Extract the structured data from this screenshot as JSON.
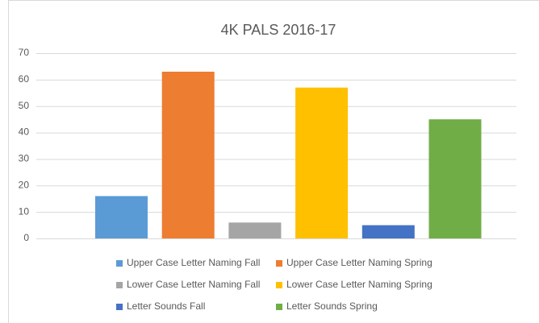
{
  "chart_data": {
    "type": "bar",
    "title": "4K PALS 2016-17",
    "categories": [
      null
    ],
    "series": [
      {
        "name": "Upper Case Letter Naming Fall",
        "color": "#5b9bd5",
        "values": [
          16
        ]
      },
      {
        "name": "Upper Case Letter Naming Spring",
        "color": "#ed7d31",
        "values": [
          63
        ]
      },
      {
        "name": "Lower Case Letter Naming Fall",
        "color": "#a5a5a5",
        "values": [
          6
        ]
      },
      {
        "name": "Lower Case Letter Naming Spring",
        "color": "#ffc000",
        "values": [
          57
        ]
      },
      {
        "name": "Letter Sounds Fall",
        "color": "#4472c4",
        "values": [
          5
        ]
      },
      {
        "name": "Letter Sounds Spring",
        "color": "#70ad47",
        "values": [
          45
        ]
      }
    ],
    "ylim": [
      0,
      70
    ],
    "yticks": [
      0,
      10,
      20,
      30,
      40,
      50,
      60,
      70
    ],
    "grid": true,
    "legend": "bottom"
  }
}
